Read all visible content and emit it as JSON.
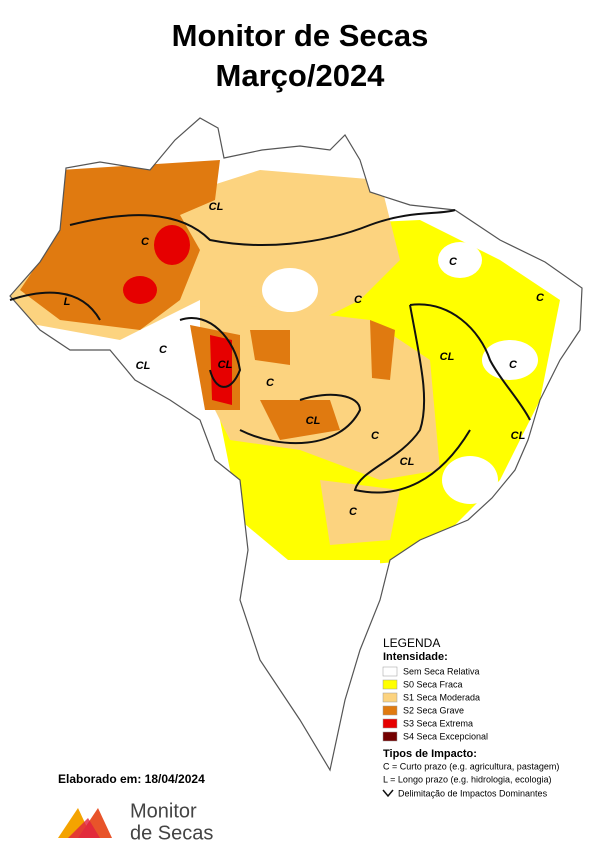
{
  "header": {
    "title_line1": "Monitor de Secas",
    "title_line2": "Março/2024"
  },
  "map": {
    "labels": [
      "C",
      "CL",
      "C",
      "C",
      "C",
      "L",
      "C",
      "CL",
      "CL",
      "CL",
      "C",
      "C",
      "CL",
      "C",
      "CL",
      "CL",
      "C"
    ]
  },
  "legend": {
    "title": "LEGENDA",
    "intensity_heading": "Intensidade:",
    "items": [
      {
        "label": "Sem Seca Relativa",
        "color": "#ffffff"
      },
      {
        "label": "S0 Seca Fraca",
        "color": "#ffff00"
      },
      {
        "label": "S1 Seca Moderada",
        "color": "#fcd37f"
      },
      {
        "label": "S2 Seca Grave",
        "color": "#e07a10"
      },
      {
        "label": "S3 Seca Extrema",
        "color": "#e60000"
      },
      {
        "label": "S4 Seca Excepcional",
        "color": "#730000"
      }
    ],
    "impact_heading": "Tipos de Impacto:",
    "impact_short": "C = Curto prazo (e.g. agricultura, pastagem)",
    "impact_long": "L = Longo prazo (e.g. hidrologia, ecologia)",
    "impact_line": "Delimitação de Impactos Dominantes"
  },
  "footer": {
    "elaborated": "Elaborado em: 18/04/2024",
    "logo_line1": "Monitor",
    "logo_line2": "de Secas"
  }
}
